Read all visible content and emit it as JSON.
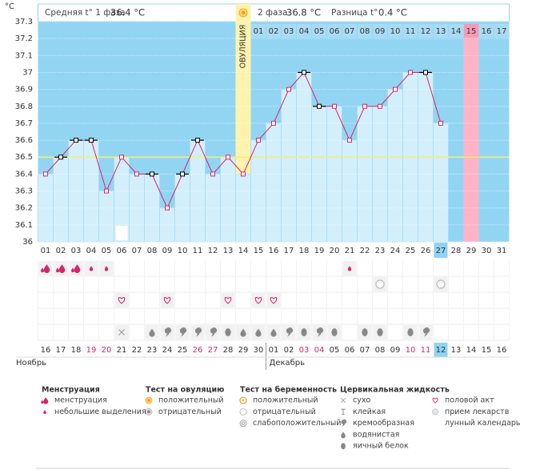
{
  "header": {
    "phase1_label": "Средняя t° 1 фаза",
    "phase1_value": "36.4 °C",
    "phase2_label": "2 фаза",
    "phase2_value": "36.8 °C",
    "diff_label": "Разница t°",
    "diff_value": "0.4 °C"
  },
  "chart_data": {
    "type": "line",
    "y_unit": "°C",
    "categories": [
      "01",
      "02",
      "03",
      "04",
      "05",
      "06",
      "07",
      "08",
      "09",
      "10",
      "11",
      "12",
      "13",
      "14",
      "15",
      "16",
      "17",
      "18",
      "19",
      "20",
      "21",
      "22",
      "23",
      "24",
      "25",
      "26",
      "27",
      "28",
      "29",
      "30",
      "31"
    ],
    "values": [
      36.4,
      36.5,
      36.6,
      36.6,
      36.3,
      36.5,
      36.4,
      36.4,
      36.2,
      36.4,
      36.6,
      36.4,
      36.5,
      36.4,
      36.6,
      36.7,
      36.9,
      37,
      36.8,
      36.8,
      36.6,
      36.8,
      36.8,
      36.9,
      37,
      37,
      36.7,
      null,
      null,
      null,
      null
    ],
    "color": "#d8246a",
    "ylim": [
      36,
      37.3
    ],
    "yticks": [
      36,
      36.1,
      36.2,
      36.3,
      36.4,
      36.5,
      36.6,
      36.7,
      36.8,
      36.9,
      37,
      37.1,
      37.2,
      37.3
    ],
    "grid": true,
    "coverline": 36.5,
    "ovulation_day": 14,
    "ovulation_label": "ОВУЛЯЦИЯ",
    "expected_period_day": 29,
    "today": 27,
    "phase2_labels": [
      "01",
      "02",
      "03",
      "04",
      "05",
      "06",
      "07",
      "08",
      "09",
      "10",
      "11",
      "12",
      "13",
      "14",
      "15",
      "16",
      "17"
    ],
    "dates": [
      "16",
      "17",
      "18",
      "19",
      "20",
      "21",
      "22",
      "23",
      "24",
      "25",
      "26",
      "27",
      "28",
      "29",
      "30",
      "01",
      "02",
      "03",
      "04",
      "05",
      "06",
      "07",
      "08",
      "09",
      "10",
      "11",
      "12",
      "13",
      "14",
      "15",
      "16"
    ],
    "date_colors": [
      "#333",
      "#333",
      "#333",
      "#d8246a",
      "#d8246a",
      "#333",
      "#333",
      "#333",
      "#333",
      "#333",
      "#d8246a",
      "#d8246a",
      "#333",
      "#333",
      "#333",
      "#333",
      "#333",
      "#d8246a",
      "#d8246a",
      "#333",
      "#333",
      "#333",
      "#333",
      "#333",
      "#d8246a",
      "#d8246a",
      "#333",
      "#333",
      "#333",
      "#333",
      "#333"
    ],
    "months": [
      "Ноябрь",
      "Декабрь"
    ]
  },
  "legend": [
    {
      "title": "Менструация",
      "items": [
        "менструация",
        "небольшие выделения"
      ]
    },
    {
      "title": "Тест на овуляцию",
      "items": [
        "положительный",
        "отрицательный"
      ]
    },
    {
      "title": "Тест на беременность",
      "items": [
        "положительный",
        "отрицательный",
        "слабоположительный"
      ]
    },
    {
      "title": "Цервикальная жидкость",
      "items": [
        "сухо",
        "клейкая",
        "кремообразная",
        "водянистая",
        "яичный белок"
      ]
    },
    {
      "items": [
        "половой акт",
        "прием лекарств",
        "лунный календарь"
      ]
    }
  ]
}
